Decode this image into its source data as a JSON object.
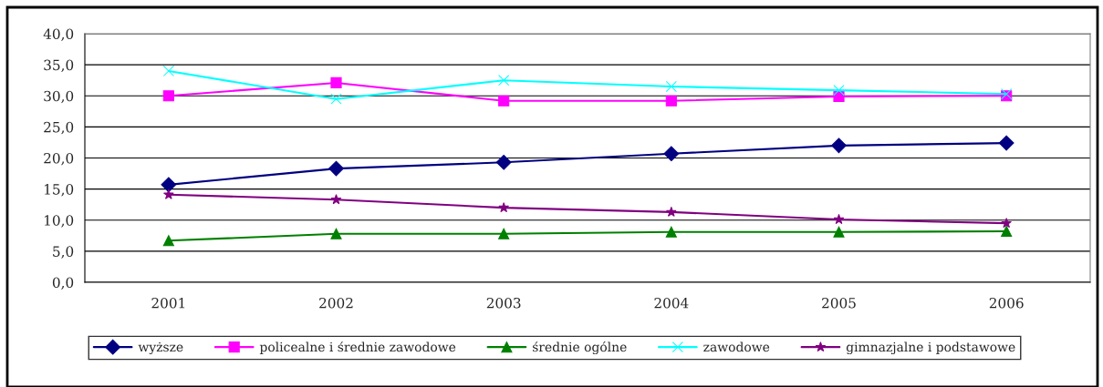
{
  "chart_data": {
    "type": "line",
    "categories": [
      "2001",
      "2002",
      "2003",
      "2004",
      "2005",
      "2006"
    ],
    "series": [
      {
        "name": "wyższe",
        "color": "#000080",
        "marker": "diamond",
        "values": [
          15.7,
          18.3,
          19.3,
          20.7,
          22.0,
          22.4
        ]
      },
      {
        "name": "policealne i średnie zawodowe",
        "color": "#ff00ff",
        "marker": "square",
        "values": [
          30.0,
          32.1,
          29.2,
          29.2,
          29.9,
          30.0
        ]
      },
      {
        "name": "średnie ogólne",
        "color": "#008000",
        "marker": "triangle",
        "values": [
          6.7,
          7.8,
          7.8,
          8.1,
          8.1,
          8.2
        ]
      },
      {
        "name": "zawodowe",
        "color": "#00ffff",
        "marker": "cross",
        "values": [
          34.0,
          29.5,
          32.5,
          31.5,
          30.9,
          30.3
        ]
      },
      {
        "name": "gimnazjalne i podstawowe",
        "color": "#800080",
        "marker": "star",
        "values": [
          14.1,
          13.3,
          12.0,
          11.3,
          10.1,
          9.5
        ]
      }
    ],
    "ylim": [
      0,
      40
    ],
    "yticks": [
      {
        "value": 0,
        "label": "0,0"
      },
      {
        "value": 5,
        "label": "5,0"
      },
      {
        "value": 10,
        "label": "10,0"
      },
      {
        "value": 15,
        "label": "15,0"
      },
      {
        "value": 20,
        "label": "20,0"
      },
      {
        "value": 25,
        "label": "25,0"
      },
      {
        "value": 30,
        "label": "30,0"
      },
      {
        "value": 35,
        "label": "35,0"
      },
      {
        "value": 40,
        "label": "40,0"
      }
    ],
    "grid": "y",
    "legend": "bottom",
    "line_style": "solid"
  }
}
